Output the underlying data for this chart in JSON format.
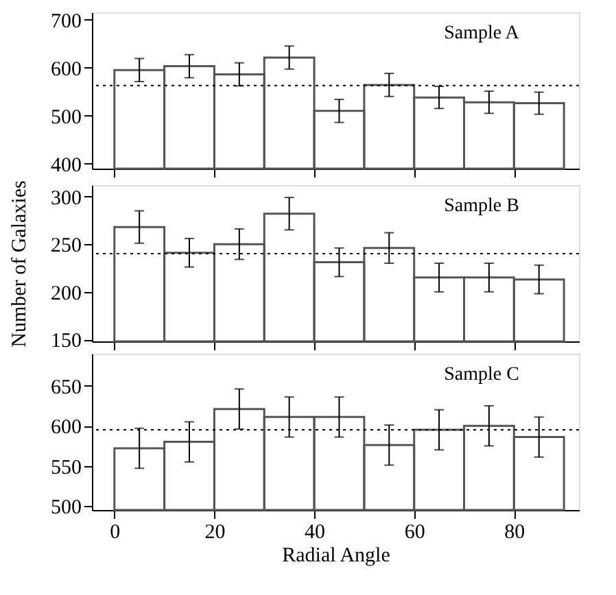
{
  "chart_data": [
    {
      "type": "histogram",
      "bins": [
        0,
        10,
        20,
        30,
        40,
        50,
        60,
        70,
        80,
        90
      ],
      "values": [
        595,
        603,
        586,
        621,
        510,
        564,
        538,
        528,
        526
      ],
      "errors": [
        24,
        24,
        24,
        24,
        24,
        24,
        23,
        23,
        23
      ],
      "color": "#555555",
      "xlim": [
        -4.5,
        93
      ],
      "xticks": [
        0,
        20,
        40,
        60,
        80
      ],
      "ylim": [
        390,
        715
      ],
      "yticks": [
        400,
        500,
        600,
        700
      ],
      "tick_labels": "y",
      "grid": false,
      "annotations": [
        "Sample A"
      ],
      "ref_lines": [
        {
          "axis": "y",
          "value": 563,
          "line_style": "dotted",
          "color": "#000000"
        }
      ]
    },
    {
      "type": "histogram",
      "bins": [
        0,
        10,
        20,
        30,
        40,
        50,
        60,
        70,
        80,
        90
      ],
      "values": [
        268,
        241,
        250,
        282,
        231,
        246,
        215,
        215,
        213
      ],
      "errors": [
        17,
        15,
        16,
        17,
        15,
        16,
        15,
        15,
        15
      ],
      "color": "#555555",
      "xlim": [
        -4.5,
        93
      ],
      "xticks": [
        0,
        20,
        40,
        60,
        80
      ],
      "ylim": [
        148,
        312
      ],
      "yticks": [
        150,
        200,
        250,
        300
      ],
      "tick_labels": "y",
      "grid": false,
      "ylabel": "Number of Galaxies",
      "annotations": [
        "Sample B"
      ],
      "ref_lines": [
        {
          "axis": "y",
          "value": 240,
          "line_style": "dotted",
          "color": "#000000"
        }
      ]
    },
    {
      "type": "histogram",
      "bins": [
        0,
        10,
        20,
        30,
        40,
        50,
        60,
        70,
        80,
        90
      ],
      "values": [
        572,
        580,
        621,
        611,
        611,
        576,
        595,
        600,
        586
      ],
      "errors": [
        25,
        25,
        25,
        25,
        25,
        25,
        25,
        25,
        25
      ],
      "color": "#555555",
      "xlim": [
        -4.5,
        93
      ],
      "xticks": [
        0,
        20,
        40,
        60,
        80
      ],
      "ylim": [
        495,
        690
      ],
      "yticks": [
        500,
        550,
        600,
        650
      ],
      "grid": false,
      "xlabel": "Radial Angle",
      "annotations": [
        "Sample C"
      ],
      "ref_lines": [
        {
          "axis": "y",
          "value": 595,
          "line_style": "dotted",
          "color": "#000000"
        }
      ]
    }
  ]
}
